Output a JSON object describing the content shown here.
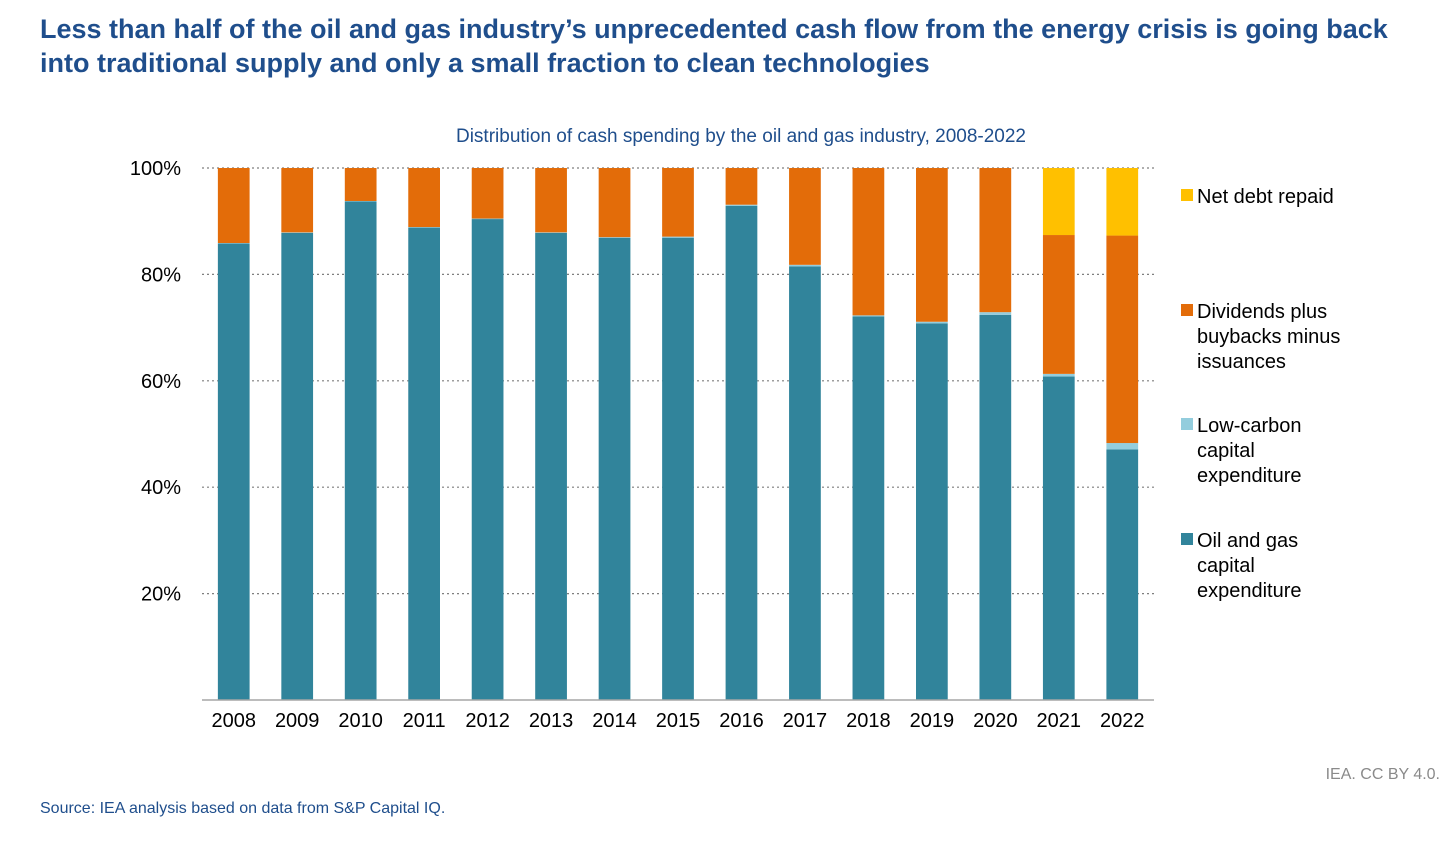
{
  "page": {
    "headline": "Less than half of the oil and gas industry’s unprecedented cash flow from the energy crisis is going back into traditional supply and only a small fraction to clean technologies",
    "source": "Source: IEA analysis based on data from S&P Capital IQ.",
    "credit": "IEA. CC BY 4.0."
  },
  "chart_data": {
    "type": "bar",
    "stacked": true,
    "title": "Distribution of cash spending by the oil and gas industry, 2008-2022",
    "categories": [
      "2008",
      "2009",
      "2010",
      "2011",
      "2012",
      "2013",
      "2014",
      "2015",
      "2016",
      "2017",
      "2018",
      "2019",
      "2020",
      "2021",
      "2022"
    ],
    "series": [
      {
        "name": "Oil and gas capital expenditure",
        "color": "#31849b",
        "values": [
          85.8,
          87.8,
          93.7,
          88.8,
          90.4,
          87.8,
          86.9,
          86.9,
          92.9,
          81.5,
          72.1,
          70.8,
          72.4,
          60.8,
          47.1
        ]
      },
      {
        "name": "Low-carbon capital expenditure",
        "color": "#93cddd",
        "values": [
          0.1,
          0.1,
          0.1,
          0.1,
          0.1,
          0.1,
          0.1,
          0.2,
          0.2,
          0.3,
          0.2,
          0.3,
          0.5,
          0.5,
          1.2
        ]
      },
      {
        "name": "Dividends plus buybacks minus issuances",
        "color": "#e36c09",
        "values": [
          14.1,
          12.1,
          6.2,
          11.1,
          9.5,
          12.1,
          13.0,
          12.9,
          6.9,
          18.2,
          27.7,
          28.9,
          27.1,
          26.1,
          39.0
        ]
      },
      {
        "name": "Net debt repaid",
        "color": "#ffc000",
        "values": [
          0,
          0,
          0,
          0,
          0,
          0,
          0,
          0,
          0,
          0,
          0,
          0,
          0,
          12.6,
          12.7
        ]
      }
    ],
    "legend_order": [
      3,
      2,
      1,
      0
    ],
    "legend_lines": [
      [
        "Net debt repaid"
      ],
      [
        "Dividends plus",
        "buybacks minus",
        "issuances"
      ],
      [
        "Low-carbon",
        "capital",
        "expenditure"
      ],
      [
        "Oil and gas",
        "capital",
        "expenditure"
      ]
    ],
    "ylim": [
      0,
      100
    ],
    "yticks": [
      20,
      40,
      60,
      80,
      100
    ],
    "ytick_labels": [
      "20%",
      "40%",
      "60%",
      "80%",
      "100%"
    ],
    "grid": true,
    "legend_position": "right"
  }
}
